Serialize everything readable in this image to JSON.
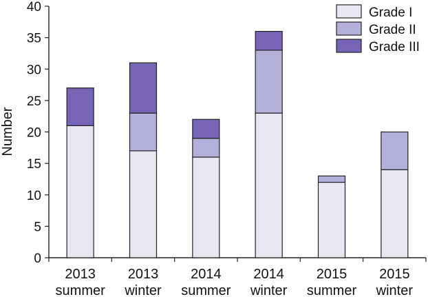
{
  "chart_data": {
    "type": "bar",
    "stacked": true,
    "categories": [
      [
        "2013",
        "summer"
      ],
      [
        "2013",
        "winter"
      ],
      [
        "2014",
        "summer"
      ],
      [
        "2014",
        "winter"
      ],
      [
        "2015",
        "summer"
      ],
      [
        "2015",
        "winter"
      ]
    ],
    "series": [
      {
        "name": "Grade I",
        "color": "#e8e6f3",
        "values": [
          21,
          17,
          16,
          23,
          12,
          14
        ]
      },
      {
        "name": "Grade II",
        "color": "#b3b1da",
        "values": [
          0,
          6,
          3,
          10,
          1,
          6
        ]
      },
      {
        "name": "Grade III",
        "color": "#7664b6",
        "values": [
          6,
          8,
          3,
          3,
          0,
          0
        ]
      }
    ],
    "ylabel": "Number",
    "xlabel": "",
    "title": "",
    "ylim": [
      0,
      40
    ],
    "yticks": [
      0,
      5,
      10,
      15,
      20,
      25,
      30,
      35,
      40
    ],
    "grid": false,
    "legend_position": "top-right"
  }
}
